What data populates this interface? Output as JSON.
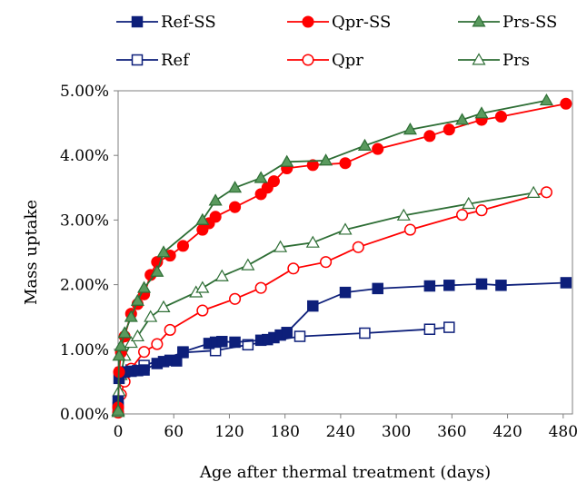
{
  "chart_data": {
    "type": "line",
    "xlabel": "Age after thermal treatment (days)",
    "ylabel": "Mass uptake",
    "xlim": [
      0,
      490
    ],
    "ylim": [
      0,
      0.05
    ],
    "x_ticks": [
      0,
      60,
      120,
      180,
      240,
      300,
      360,
      420,
      480
    ],
    "x_tick_labels": [
      "0",
      "60",
      "120",
      "180",
      "240",
      "300",
      "360",
      "420",
      "480"
    ],
    "y_ticks": [
      0,
      0.01,
      0.02,
      0.03,
      0.04,
      0.05
    ],
    "y_tick_labels": [
      "0.00%",
      "1.00%",
      "2.00%",
      "3.00%",
      "4.00%",
      "5.00%"
    ],
    "grid": false,
    "legend_position": "top",
    "colors": {
      "navy": "#0d1f7a",
      "red": "#ff0000",
      "green": "#2e6e35",
      "green_fill": "#5a9a5e"
    },
    "series": [
      {
        "name": "Ref-SS",
        "color": "#0d1f7a",
        "marker": "square",
        "filled": true,
        "x": [
          0,
          1,
          3,
          7,
          14,
          21,
          28,
          42,
          49,
          56,
          63,
          70,
          98,
          105,
          112,
          126,
          154,
          161,
          168,
          175,
          182,
          210,
          245,
          280,
          336,
          357,
          392,
          413,
          483
        ],
        "y": [
          0.002,
          0.0055,
          0.0064,
          0.0065,
          0.0066,
          0.0067,
          0.0068,
          0.0078,
          0.0081,
          0.0083,
          0.0082,
          0.0096,
          0.0109,
          0.0111,
          0.0112,
          0.0111,
          0.0114,
          0.0115,
          0.0118,
          0.0122,
          0.0126,
          0.0167,
          0.0188,
          0.0194,
          0.0198,
          0.0199,
          0.0201,
          0.0199,
          0.0203
        ]
      },
      {
        "name": "Qpr-SS",
        "color": "#ff0000",
        "marker": "circle",
        "filled": true,
        "x": [
          0,
          1,
          3,
          7,
          14,
          21,
          28,
          35,
          42,
          56,
          70,
          91,
          98,
          105,
          126,
          154,
          161,
          168,
          182,
          210,
          245,
          280,
          336,
          357,
          392,
          413,
          483
        ],
        "y": [
          0.001,
          0.0065,
          0.0095,
          0.012,
          0.0155,
          0.017,
          0.0185,
          0.0215,
          0.0235,
          0.0245,
          0.026,
          0.0285,
          0.0295,
          0.0305,
          0.032,
          0.034,
          0.035,
          0.036,
          0.038,
          0.0385,
          0.0388,
          0.041,
          0.043,
          0.044,
          0.0455,
          0.046,
          0.048
        ]
      },
      {
        "name": "Prs-SS",
        "color": "#2e6e35",
        "fill": "#5a9a5e",
        "marker": "triangle",
        "filled": true,
        "x": [
          0,
          1,
          3,
          7,
          14,
          21,
          28,
          42,
          49,
          91,
          105,
          126,
          154,
          182,
          224,
          266,
          315,
          371,
          392,
          462
        ],
        "y": [
          0.0005,
          0.009,
          0.0105,
          0.0125,
          0.015,
          0.0175,
          0.0195,
          0.022,
          0.025,
          0.03,
          0.033,
          0.035,
          0.0365,
          0.039,
          0.0392,
          0.0415,
          0.044,
          0.0455,
          0.0465,
          0.0485
        ]
      },
      {
        "name": "Ref",
        "color": "#0d1f7a",
        "marker": "square",
        "filled": false,
        "x": [
          0,
          3,
          7,
          14,
          28,
          70,
          105,
          140,
          196,
          266,
          336,
          357
        ],
        "y": [
          0.001,
          0.006,
          0.0065,
          0.0068,
          0.0075,
          0.0095,
          0.0098,
          0.0107,
          0.012,
          0.0125,
          0.0131,
          0.0134
        ]
      },
      {
        "name": "Qpr",
        "color": "#ff0000",
        "marker": "circle",
        "filled": false,
        "x": [
          0,
          3,
          7,
          14,
          28,
          42,
          56,
          91,
          126,
          154,
          189,
          224,
          259,
          315,
          371,
          392,
          462
        ],
        "y": [
          0.0002,
          0.003,
          0.005,
          0.007,
          0.0096,
          0.0108,
          0.013,
          0.016,
          0.0178,
          0.0195,
          0.0225,
          0.0235,
          0.0258,
          0.0285,
          0.0308,
          0.0315,
          0.0343
        ]
      },
      {
        "name": "Prs",
        "color": "#2e6e35",
        "marker": "triangle",
        "filled": false,
        "x": [
          0,
          1,
          3,
          7,
          14,
          21,
          35,
          49,
          84,
          91,
          112,
          140,
          175,
          210,
          245,
          308,
          378,
          448
        ],
        "y": [
          0.0003,
          0.0035,
          0.006,
          0.009,
          0.011,
          0.012,
          0.015,
          0.0165,
          0.0188,
          0.0195,
          0.0213,
          0.023,
          0.0258,
          0.0265,
          0.0285,
          0.0307,
          0.0325,
          0.0342
        ]
      }
    ]
  }
}
